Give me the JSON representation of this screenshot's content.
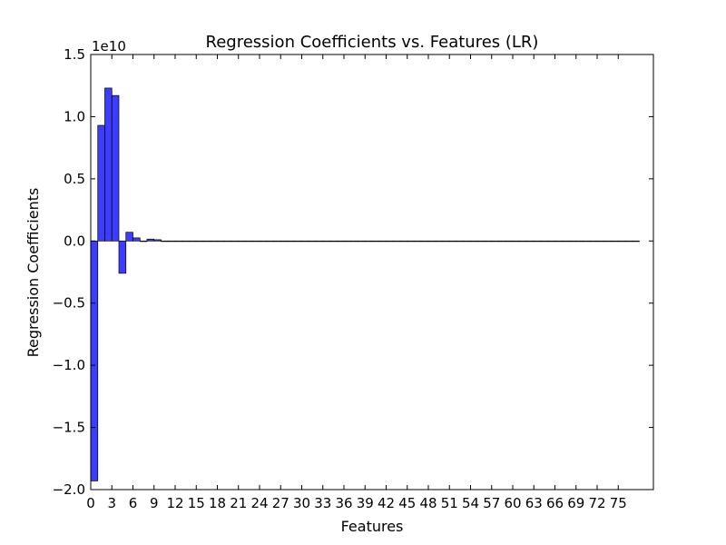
{
  "chart_data": {
    "type": "bar",
    "title": "Regression Coefficients vs. Features (LR)",
    "xlabel": "Features",
    "ylabel": "Regression Coefficients",
    "y_offset_label": "1e10",
    "xlim": [
      0,
      80
    ],
    "ylim": [
      -2.0,
      1.5
    ],
    "x_ticks": [
      0,
      3,
      6,
      9,
      12,
      15,
      18,
      21,
      24,
      27,
      30,
      33,
      36,
      39,
      42,
      45,
      48,
      51,
      54,
      57,
      60,
      63,
      66,
      69,
      72,
      75
    ],
    "y_ticks": [
      -2.0,
      -1.5,
      -1.0,
      -0.5,
      0.0,
      0.5,
      1.0,
      1.5
    ],
    "y_tick_labels": [
      "−2.0",
      "−1.5",
      "−1.0",
      "−0.5",
      "0.0",
      "0.5",
      "1.0",
      "1.5"
    ],
    "bar_color": "#3333ff",
    "bar_edge_color": "#000000",
    "grid": false,
    "x": [
      0,
      1,
      2,
      3,
      4,
      5,
      6,
      7,
      8,
      9,
      10,
      11,
      12,
      13,
      14,
      15,
      16,
      17,
      18,
      19,
      20,
      21,
      22,
      23,
      24,
      25,
      26,
      27,
      28,
      29,
      30,
      31,
      32,
      33,
      34,
      35,
      36,
      37,
      38,
      39,
      40,
      41,
      42,
      43,
      44,
      45,
      46,
      47,
      48,
      49,
      50,
      51,
      52,
      53,
      54,
      55,
      56,
      57,
      58,
      59,
      60,
      61,
      62,
      63,
      64,
      65,
      66,
      67,
      68,
      69,
      70,
      71,
      72,
      73,
      74,
      75,
      76,
      77
    ],
    "values": [
      -1.93,
      0.93,
      1.23,
      1.17,
      -0.26,
      0.07,
      0.025,
      0.0,
      0.015,
      0.01,
      0.0,
      0.0,
      0.0,
      0.0,
      0.0,
      0.0,
      0.0,
      0.0,
      0.0,
      0.0,
      0.0,
      0.0,
      0.0,
      0.0,
      0.0,
      0.0,
      0.0,
      0.0,
      0.0,
      0.0,
      0.0,
      0.0,
      0.0,
      0.0,
      0.0,
      0.0,
      0.0,
      0.0,
      0.0,
      0.0,
      0.0,
      0.0,
      0.0,
      0.0,
      0.0,
      0.0,
      0.0,
      0.0,
      0.0,
      0.0,
      0.0,
      0.0,
      0.0,
      0.0,
      0.0,
      0.0,
      0.0,
      0.0,
      0.0,
      0.0,
      0.0,
      0.0,
      0.0,
      0.0,
      0.0,
      0.0,
      0.0,
      0.0,
      0.0,
      0.0,
      0.0,
      0.0,
      0.0,
      0.0,
      0.0,
      0.0,
      0.0,
      0.0
    ]
  }
}
